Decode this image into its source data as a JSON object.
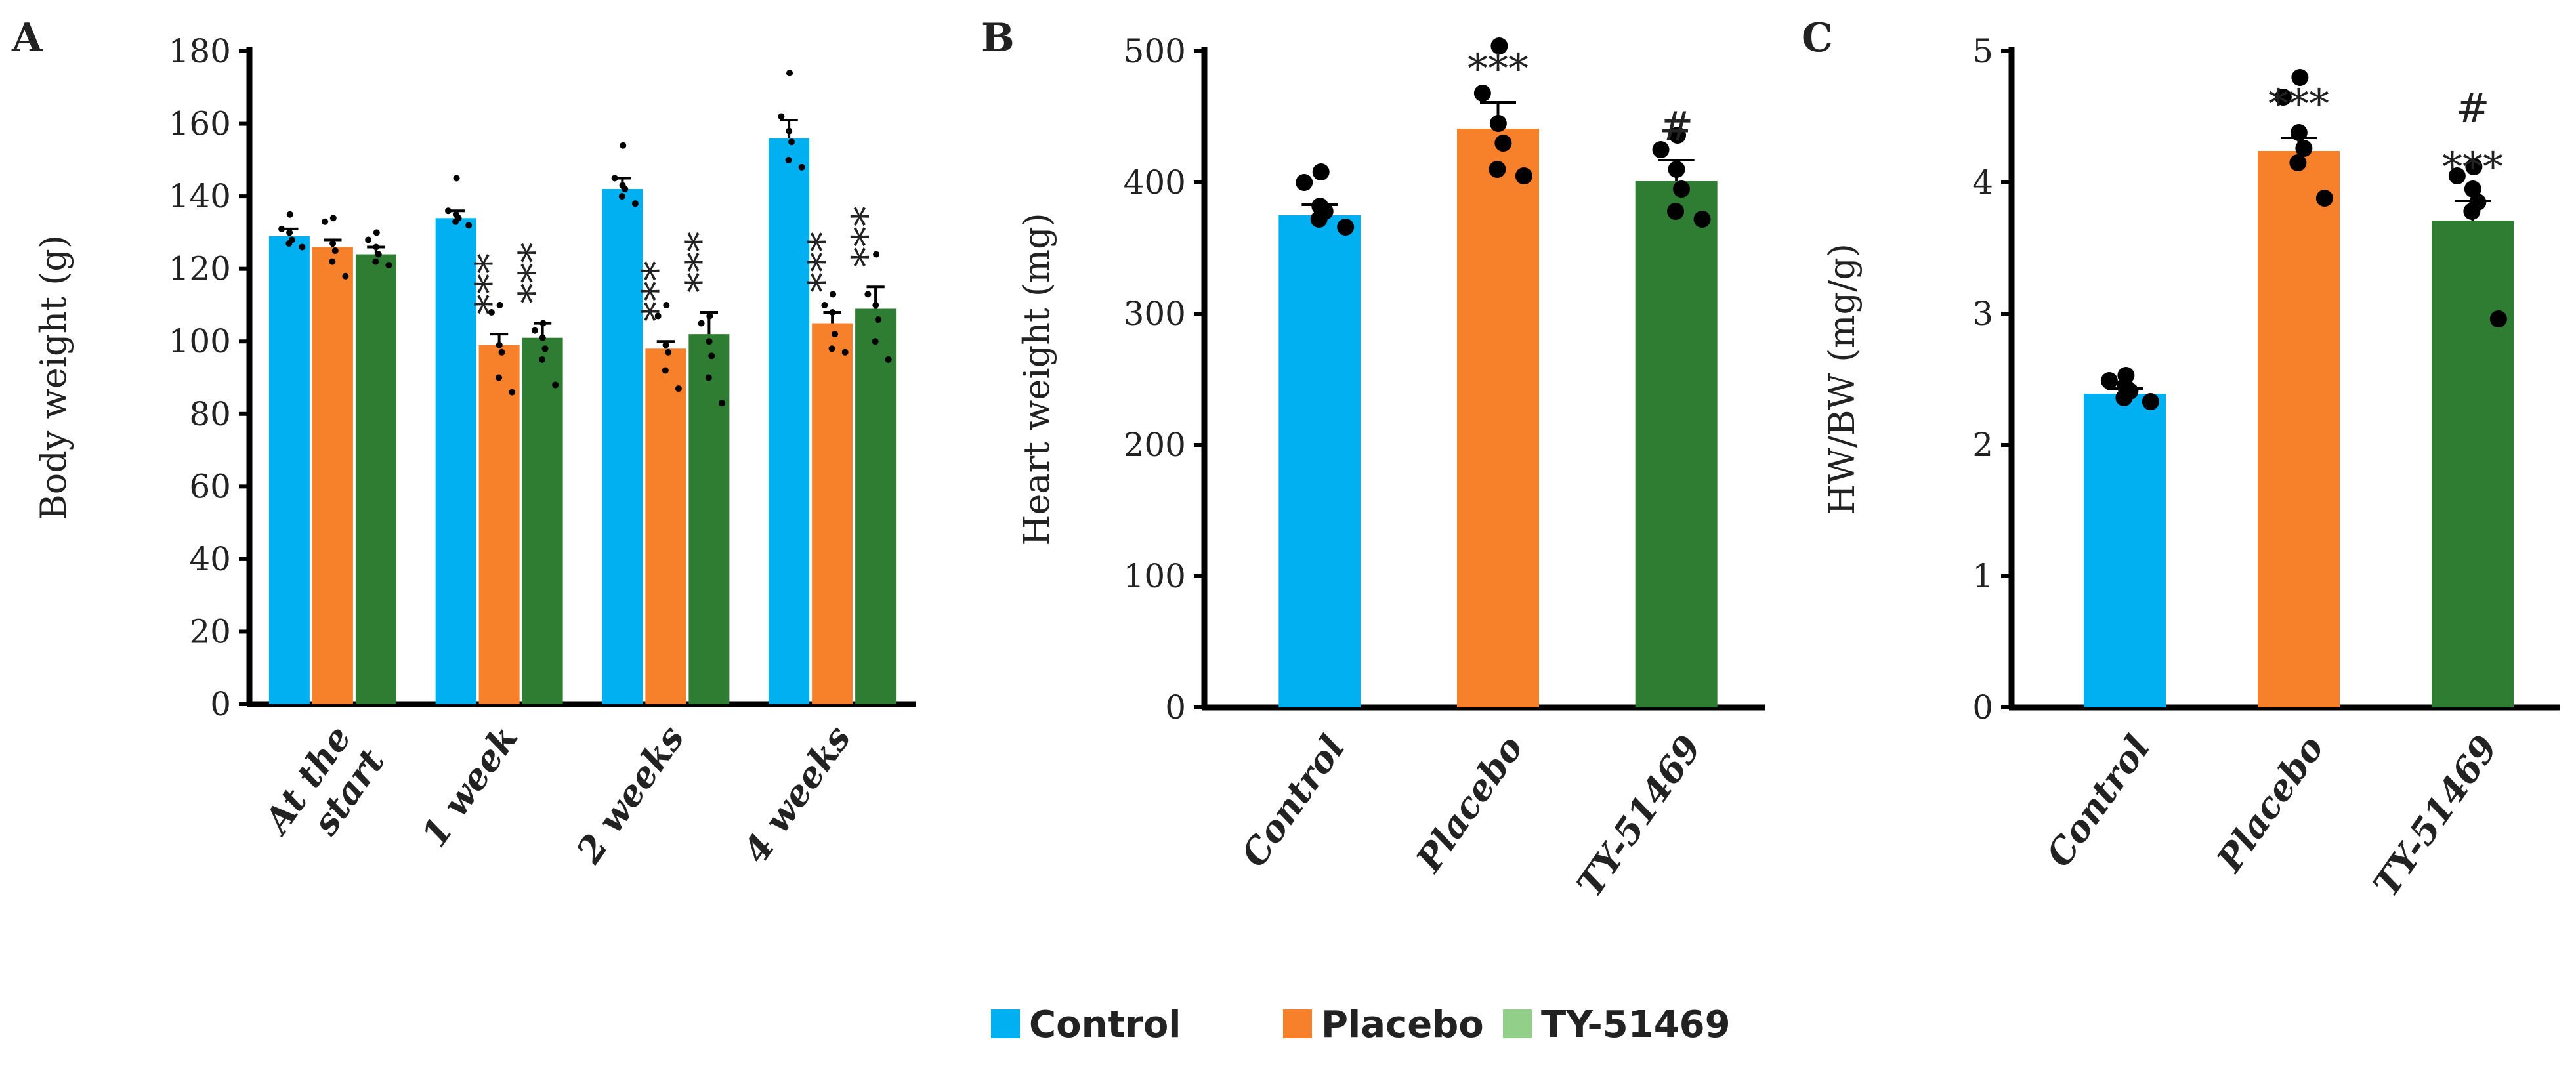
{
  "colors": {
    "control": "#00b0f0",
    "placebo": "#f7802a",
    "ty51469": "#2e7d32",
    "ty51469_legend": "#92d08a",
    "axis": "#000000",
    "dots": "#000000"
  },
  "legend": [
    {
      "label": "Control",
      "color_key": "control"
    },
    {
      "label": "Placebo",
      "color_key": "placebo"
    },
    {
      "label": "TY-51469",
      "color_key": "ty51469_legend"
    }
  ],
  "chart_data": [
    {
      "id": "A",
      "panel_label": "A",
      "type": "bar",
      "ylabel": "Body weight (g)",
      "ylim": [
        0,
        180
      ],
      "yticks": [
        0,
        20,
        40,
        60,
        80,
        100,
        120,
        140,
        160,
        180
      ],
      "categories": [
        "At the\nstart",
        "1 week",
        "2 weeks",
        "4 weeks"
      ],
      "category_lines": [
        [
          "At the",
          "start"
        ],
        [
          "1 week"
        ],
        [
          "2 weeks"
        ],
        [
          "4 weeks"
        ]
      ],
      "series": [
        {
          "name": "Control",
          "color_key": "control",
          "values": [
            129,
            134,
            142,
            156
          ],
          "err": [
            2,
            2,
            3,
            5
          ],
          "points": [
            [
              135,
              131,
              130,
              128,
              127,
              126
            ],
            [
              145,
              136,
              135,
              134,
              133,
              132
            ],
            [
              154,
              145,
              143,
              142,
              140,
              138
            ],
            [
              174,
              162,
              158,
              155,
              150,
              148
            ]
          ]
        },
        {
          "name": "Placebo",
          "color_key": "placebo",
          "values": [
            126,
            99,
            98,
            105
          ],
          "err": [
            2,
            3,
            2,
            3
          ],
          "points": [
            [
              134,
              133,
              127,
              125,
              122,
              118
            ],
            [
              110,
              108,
              99,
              97,
              90,
              86
            ],
            [
              110,
              107,
              99,
              97,
              92,
              87
            ],
            [
              113,
              110,
              108,
              102,
              98,
              97
            ]
          ],
          "sig": [
            "",
            "***",
            "***",
            "***"
          ]
        },
        {
          "name": "TY-51469",
          "color_key": "ty51469",
          "values": [
            124,
            101,
            102,
            109
          ],
          "err": [
            2,
            4,
            6,
            6
          ],
          "points": [
            [
              130,
              128,
              126,
              124,
              122,
              121
            ],
            [
              105,
              103,
              101,
              98,
              95,
              88
            ],
            [
              107,
              105,
              100,
              96,
              90,
              83
            ],
            [
              124,
              113,
              110,
              106,
              100,
              95
            ]
          ],
          "sig": [
            "",
            "***",
            "***",
            "***"
          ]
        }
      ]
    },
    {
      "id": "B",
      "panel_label": "B",
      "type": "bar",
      "ylabel": "Heart weight (mg)",
      "ylim": [
        0,
        500
      ],
      "yticks": [
        0,
        100,
        200,
        300,
        400,
        500
      ],
      "categories": [
        "Control",
        "Placebo",
        "TY-51469"
      ],
      "values": [
        375,
        441,
        401
      ],
      "err": [
        8,
        20,
        16
      ],
      "color_keys": [
        "control",
        "placebo",
        "ty51469"
      ],
      "points": [
        [
          408,
          400,
          382,
          378,
          372,
          366
        ],
        [
          504,
          468,
          445,
          430,
          410,
          405
        ],
        [
          436,
          425,
          410,
          395,
          378,
          372
        ]
      ],
      "sig_top": [
        "",
        "***",
        "#"
      ]
    },
    {
      "id": "C",
      "panel_label": "C",
      "type": "bar",
      "ylabel": "HW/BW (mg/g)",
      "ylim": [
        0,
        5
      ],
      "yticks": [
        0,
        1,
        2,
        3,
        4,
        5
      ],
      "categories": [
        "Control",
        "Placebo",
        "TY-51469"
      ],
      "values": [
        2.39,
        4.24,
        3.71
      ],
      "err": [
        0.04,
        0.1,
        0.15
      ],
      "color_keys": [
        "control",
        "placebo",
        "ty51469"
      ],
      "points": [
        [
          2.53,
          2.49,
          2.45,
          2.41,
          2.36,
          2.33
        ],
        [
          4.8,
          4.65,
          4.38,
          4.26,
          4.15,
          3.88
        ],
        [
          4.12,
          4.05,
          3.95,
          3.85,
          3.78,
          2.96
        ]
      ],
      "sig_top": [
        "",
        "***",
        "***"
      ],
      "sig_hash": [
        "",
        "",
        "#"
      ]
    }
  ]
}
